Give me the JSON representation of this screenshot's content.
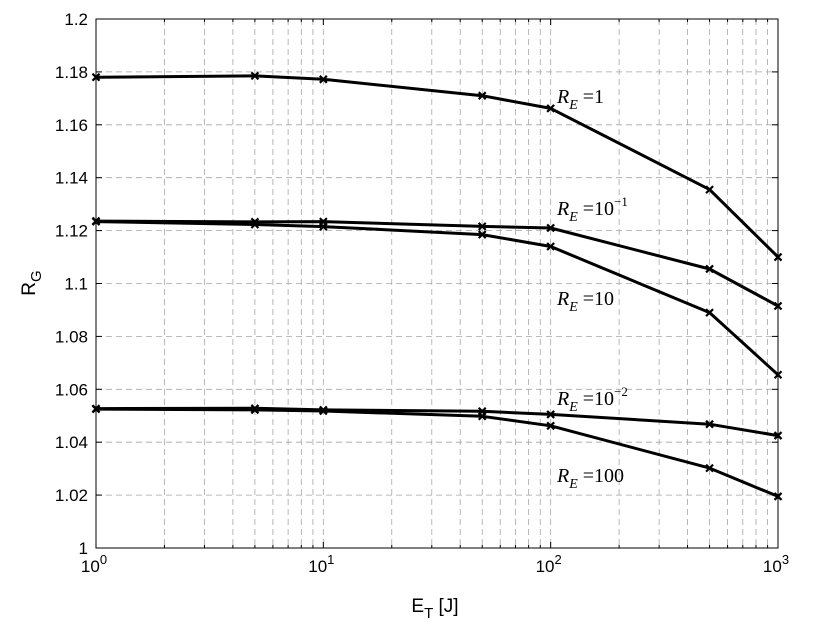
{
  "chart_data": {
    "type": "line",
    "title": "",
    "xlabel": "E",
    "xlabel_sub": "T",
    "xlabel_unit": " [J]",
    "ylabel": "R",
    "ylabel_sub": "G",
    "x_scale": "log",
    "xlim": [
      1,
      1000
    ],
    "ylim": [
      1,
      1.2
    ],
    "grid": true,
    "x_ticks": [
      1,
      10,
      100,
      1000
    ],
    "x_tick_labels": [
      {
        "base": "10",
        "exp": "0"
      },
      {
        "base": "10",
        "exp": "1"
      },
      {
        "base": "10",
        "exp": "2"
      },
      {
        "base": "10",
        "exp": "3"
      }
    ],
    "y_ticks": [
      1,
      1.02,
      1.04,
      1.06,
      1.08,
      1.1,
      1.12,
      1.14,
      1.16,
      1.18,
      1.2
    ],
    "y_tick_labels": [
      "1",
      "1.02",
      "1.04",
      "1.06",
      "1.08",
      "1.1",
      "1.12",
      "1.14",
      "1.16",
      "1.18",
      "1.2"
    ],
    "x": [
      1,
      5,
      10,
      50,
      100,
      500,
      1000
    ],
    "series": [
      {
        "name": "R_E = 1",
        "values": [
          1.178,
          1.1785,
          1.1772,
          1.171,
          1.1662,
          1.1355,
          1.11
        ],
        "color": "#000000",
        "marker": "x",
        "label": {
          "base": "R",
          "sub": "E",
          "eq": " =1",
          "exp": ""
        }
      },
      {
        "name": "R_E = 10^-1",
        "values": [
          1.1236,
          1.1233,
          1.1234,
          1.1216,
          1.121,
          1.1055,
          1.0915
        ],
        "color": "#000000",
        "marker": "x",
        "label": {
          "base": "R",
          "sub": "E",
          "eq": " =10",
          "exp": "−1"
        }
      },
      {
        "name": "R_E = 10",
        "values": [
          1.1234,
          1.1223,
          1.1215,
          1.1185,
          1.114,
          1.089,
          1.0655
        ],
        "color": "#000000",
        "marker": "x",
        "label": {
          "base": "R",
          "sub": "E",
          "eq": " =10",
          "exp": ""
        }
      },
      {
        "name": "R_E = 10^-2",
        "values": [
          1.0527,
          1.0528,
          1.0522,
          1.0517,
          1.0505,
          1.0468,
          1.0425
        ],
        "color": "#000000",
        "marker": "x",
        "label": {
          "base": "R",
          "sub": "E",
          "eq": " =10",
          "exp": "−2"
        }
      },
      {
        "name": "R_E = 100",
        "values": [
          1.0525,
          1.0522,
          1.0518,
          1.0498,
          1.0462,
          1.0302,
          1.0195
        ],
        "color": "#000000",
        "marker": "x",
        "label": {
          "base": "R",
          "sub": "E",
          "eq": " =100",
          "exp": ""
        }
      }
    ]
  }
}
